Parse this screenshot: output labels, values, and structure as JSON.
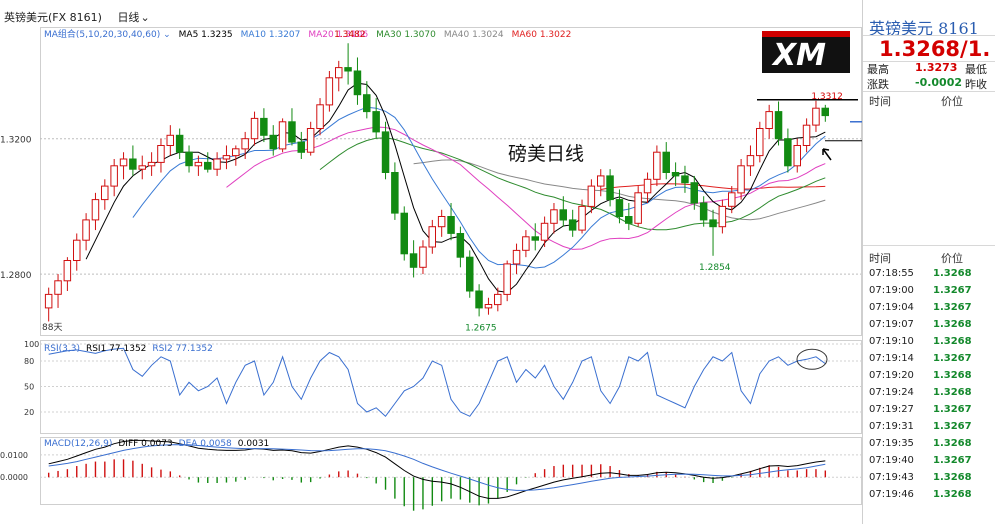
{
  "header": {
    "symbol": "英镑美元(FX 8161)",
    "period": "日线",
    "period_arrow": "⌄"
  },
  "main_panel": {
    "ma_group": "MA组合(5,10,20,30,40,60)",
    "ma_labels": [
      {
        "text": "MA5 1.3235",
        "color": "#000000"
      },
      {
        "text": "MA10 1.3207",
        "color": "#3a7bd5"
      },
      {
        "text": "MA20 1.3106",
        "color": "#e040c0"
      },
      {
        "text": "MA30 1.3070",
        "color": "#2e8b2e"
      },
      {
        "text": "MA40 1.3024",
        "color": "#888888"
      },
      {
        "text": "MA60 1.3022",
        "color": "#e02020"
      }
    ],
    "watermark_title": "磅美日线",
    "logo_text": "XM",
    "annotations": [
      "1.3482",
      "1.2675",
      "1.2854",
      "1.3312"
    ],
    "y_tick_labels": [
      "1.3200",
      "1.2800"
    ],
    "bottom_label": "88天"
  },
  "rsi_panel": {
    "title": "RSI(3,3)",
    "rsi1": "RSI1 77.1352",
    "rsi2": "RSI2 77.1352",
    "y_ticks": [
      "100",
      "80",
      "50",
      "20"
    ]
  },
  "macd_panel": {
    "title": "MACD(12,26,9)",
    "diff": "DIFF 0.0073",
    "dea": "DEA 0.0058",
    "macd": "0.0031",
    "y_ticks": [
      "0.0100",
      "0.0000"
    ]
  },
  "quote_panel": {
    "title": "英镑美元  8161",
    "price": "1.3268/1.",
    "high_label": "最高",
    "high_value": "1.3273",
    "low_label": "最低",
    "change_label": "涨跌",
    "change_value": "-0.0002",
    "prev_label": "昨收",
    "col_time": "时间",
    "col_price": "价位",
    "ticks": [
      {
        "time": "07:18:55",
        "price": "1.3268"
      },
      {
        "time": "07:19:00",
        "price": "1.3267"
      },
      {
        "time": "07:19:04",
        "price": "1.3267"
      },
      {
        "time": "07:19:07",
        "price": "1.3268"
      },
      {
        "time": "07:19:10",
        "price": "1.3268"
      },
      {
        "time": "07:19:14",
        "price": "1.3267"
      },
      {
        "time": "07:19:20",
        "price": "1.3268"
      },
      {
        "time": "07:19:24",
        "price": "1.3268"
      },
      {
        "time": "07:19:27",
        "price": "1.3267"
      },
      {
        "time": "07:19:31",
        "price": "1.3267"
      },
      {
        "time": "07:19:35",
        "price": "1.3268"
      },
      {
        "time": "07:19:40",
        "price": "1.3267"
      },
      {
        "time": "07:19:43",
        "price": "1.3268"
      },
      {
        "time": "07:19:46",
        "price": "1.3268"
      }
    ]
  },
  "colors": {
    "up": "#d01010",
    "down": "#128a12",
    "ma5": "#000000",
    "ma10": "#3a7bd5",
    "ma20": "#e040c0",
    "ma30": "#2e8b2e",
    "ma40": "#888888",
    "ma60": "#e02020",
    "rsi": "#3a6fd0",
    "dea": "#3a6fd0",
    "diff": "#000000"
  },
  "chart_data": {
    "type": "candlestick",
    "title": "磅美日线",
    "period": "daily",
    "ylim": [
      1.262,
      1.353
    ],
    "annotated_high": 1.3482,
    "annotated_lows": [
      1.2675,
      1.2854
    ],
    "annotated_recent_high": 1.3312,
    "ohlc": [
      [
        1.27,
        1.276,
        1.266,
        1.274
      ],
      [
        1.274,
        1.28,
        1.27,
        1.278
      ],
      [
        1.278,
        1.285,
        1.275,
        1.284
      ],
      [
        1.284,
        1.292,
        1.281,
        1.29
      ],
      [
        1.29,
        1.298,
        1.287,
        1.296
      ],
      [
        1.296,
        1.304,
        1.293,
        1.302
      ],
      [
        1.302,
        1.308,
        1.299,
        1.306
      ],
      [
        1.306,
        1.314,
        1.303,
        1.312
      ],
      [
        1.312,
        1.316,
        1.308,
        1.314
      ],
      [
        1.314,
        1.318,
        1.309,
        1.311
      ],
      [
        1.311,
        1.315,
        1.308,
        1.312
      ],
      [
        1.312,
        1.316,
        1.309,
        1.313
      ],
      [
        1.313,
        1.32,
        1.31,
        1.318
      ],
      [
        1.318,
        1.324,
        1.315,
        1.321
      ],
      [
        1.321,
        1.323,
        1.314,
        1.316
      ],
      [
        1.316,
        1.318,
        1.31,
        1.312
      ],
      [
        1.312,
        1.315,
        1.309,
        1.313
      ],
      [
        1.313,
        1.316,
        1.31,
        1.311
      ],
      [
        1.311,
        1.316,
        1.309,
        1.314
      ],
      [
        1.314,
        1.318,
        1.311,
        1.315
      ],
      [
        1.315,
        1.318,
        1.312,
        1.317
      ],
      [
        1.317,
        1.322,
        1.314,
        1.32
      ],
      [
        1.32,
        1.328,
        1.318,
        1.326
      ],
      [
        1.326,
        1.329,
        1.319,
        1.321
      ],
      [
        1.321,
        1.324,
        1.315,
        1.317
      ],
      [
        1.317,
        1.326,
        1.316,
        1.325
      ],
      [
        1.325,
        1.329,
        1.318,
        1.319
      ],
      [
        1.319,
        1.322,
        1.314,
        1.316
      ],
      [
        1.316,
        1.325,
        1.315,
        1.323
      ],
      [
        1.323,
        1.332,
        1.321,
        1.33
      ],
      [
        1.33,
        1.34,
        1.328,
        1.338
      ],
      [
        1.338,
        1.343,
        1.334,
        1.341
      ],
      [
        1.341,
        1.3482,
        1.336,
        1.34
      ],
      [
        1.34,
        1.344,
        1.33,
        1.333
      ],
      [
        1.333,
        1.337,
        1.326,
        1.328
      ],
      [
        1.328,
        1.332,
        1.32,
        1.322
      ],
      [
        1.322,
        1.325,
        1.308,
        1.31
      ],
      [
        1.31,
        1.313,
        1.296,
        1.298
      ],
      [
        1.298,
        1.3,
        1.284,
        1.286
      ],
      [
        1.286,
        1.29,
        1.279,
        1.282
      ],
      [
        1.282,
        1.29,
        1.28,
        1.288
      ],
      [
        1.288,
        1.296,
        1.286,
        1.294
      ],
      [
        1.294,
        1.299,
        1.291,
        1.297
      ],
      [
        1.297,
        1.301,
        1.29,
        1.292
      ],
      [
        1.292,
        1.294,
        1.282,
        1.285
      ],
      [
        1.285,
        1.287,
        1.273,
        1.275
      ],
      [
        1.275,
        1.277,
        1.2675,
        1.27
      ],
      [
        1.27,
        1.273,
        1.268,
        1.271
      ],
      [
        1.271,
        1.276,
        1.269,
        1.274
      ],
      [
        1.274,
        1.284,
        1.272,
        1.283
      ],
      [
        1.283,
        1.289,
        1.28,
        1.287
      ],
      [
        1.287,
        1.293,
        1.285,
        1.291
      ],
      [
        1.291,
        1.295,
        1.287,
        1.29
      ],
      [
        1.29,
        1.297,
        1.288,
        1.295
      ],
      [
        1.295,
        1.301,
        1.292,
        1.299
      ],
      [
        1.299,
        1.303,
        1.294,
        1.296
      ],
      [
        1.296,
        1.299,
        1.291,
        1.293
      ],
      [
        1.293,
        1.302,
        1.292,
        1.3
      ],
      [
        1.3,
        1.308,
        1.298,
        1.306
      ],
      [
        1.306,
        1.311,
        1.303,
        1.309
      ],
      [
        1.309,
        1.311,
        1.3,
        1.302
      ],
      [
        1.302,
        1.305,
        1.295,
        1.297
      ],
      [
        1.297,
        1.301,
        1.293,
        1.295
      ],
      [
        1.295,
        1.306,
        1.294,
        1.304
      ],
      [
        1.304,
        1.31,
        1.301,
        1.308
      ],
      [
        1.308,
        1.318,
        1.306,
        1.316
      ],
      [
        1.316,
        1.319,
        1.308,
        1.31
      ],
      [
        1.31,
        1.313,
        1.306,
        1.309
      ],
      [
        1.309,
        1.312,
        1.304,
        1.307
      ],
      [
        1.307,
        1.309,
        1.299,
        1.301
      ],
      [
        1.301,
        1.303,
        1.294,
        1.296
      ],
      [
        1.296,
        1.299,
        1.2854,
        1.294
      ],
      [
        1.294,
        1.302,
        1.292,
        1.3
      ],
      [
        1.3,
        1.306,
        1.298,
        1.304
      ],
      [
        1.304,
        1.314,
        1.302,
        1.312
      ],
      [
        1.312,
        1.318,
        1.309,
        1.315
      ],
      [
        1.315,
        1.325,
        1.313,
        1.323
      ],
      [
        1.323,
        1.33,
        1.32,
        1.328
      ],
      [
        1.328,
        1.331,
        1.318,
        1.32
      ],
      [
        1.32,
        1.323,
        1.31,
        1.312
      ],
      [
        1.312,
        1.32,
        1.31,
        1.318
      ],
      [
        1.318,
        1.326,
        1.316,
        1.324
      ],
      [
        1.324,
        1.3312,
        1.322,
        1.329
      ],
      [
        1.329,
        1.33,
        1.325,
        1.3268
      ]
    ],
    "rsi": [
      88,
      90,
      92,
      93,
      91,
      89,
      92,
      94,
      95,
      70,
      62,
      75,
      85,
      80,
      40,
      55,
      45,
      50,
      60,
      30,
      55,
      75,
      80,
      40,
      55,
      85,
      50,
      35,
      60,
      80,
      90,
      85,
      70,
      30,
      20,
      25,
      15,
      30,
      45,
      50,
      60,
      80,
      75,
      35,
      20,
      15,
      30,
      55,
      80,
      85,
      55,
      70,
      60,
      75,
      50,
      35,
      55,
      80,
      85,
      45,
      30,
      50,
      85,
      80,
      90,
      40,
      35,
      30,
      25,
      50,
      70,
      85,
      80,
      90,
      45,
      30,
      65,
      80,
      85,
      75,
      80,
      82,
      85,
      77
    ],
    "macd": {
      "diff": [
        0.006,
        0.007,
        0.008,
        0.0095,
        0.011,
        0.0125,
        0.0135,
        0.015,
        0.016,
        0.0165,
        0.0165,
        0.0162,
        0.016,
        0.0158,
        0.015,
        0.014,
        0.013,
        0.0125,
        0.0122,
        0.012,
        0.012,
        0.0122,
        0.0128,
        0.0126,
        0.012,
        0.0122,
        0.0118,
        0.011,
        0.0108,
        0.0115,
        0.0125,
        0.0135,
        0.014,
        0.0135,
        0.0125,
        0.011,
        0.009,
        0.006,
        0.003,
        0.0005,
        -0.001,
        -0.0018,
        -0.0022,
        -0.003,
        -0.0045,
        -0.0065,
        -0.0085,
        -0.0095,
        -0.0095,
        -0.0088,
        -0.0075,
        -0.006,
        -0.0048,
        -0.0035,
        -0.0022,
        -0.0012,
        -0.0005,
        0.0002,
        0.001,
        0.0018,
        0.002,
        0.0015,
        0.0008,
        0.0008,
        0.0012,
        0.002,
        0.0022,
        0.002,
        0.0015,
        0.0008,
        0.0,
        -0.0005,
        -0.0002,
        0.0005,
        0.0015,
        0.0025,
        0.0038,
        0.005,
        0.0052,
        0.0048,
        0.0052,
        0.006,
        0.0068,
        0.0073
      ],
      "dea": [
        0.005,
        0.0056,
        0.0062,
        0.007,
        0.008,
        0.009,
        0.01,
        0.011,
        0.012,
        0.0128,
        0.0135,
        0.014,
        0.0143,
        0.0145,
        0.0146,
        0.0145,
        0.0142,
        0.0138,
        0.0135,
        0.0132,
        0.013,
        0.0128,
        0.0128,
        0.0128,
        0.0127,
        0.0126,
        0.0124,
        0.0122,
        0.0119,
        0.0118,
        0.0119,
        0.0122,
        0.0125,
        0.0127,
        0.0127,
        0.0124,
        0.0118,
        0.0108,
        0.0095,
        0.008,
        0.0062,
        0.0046,
        0.0032,
        0.0018,
        0.0005,
        -0.0008,
        -0.0022,
        -0.0036,
        -0.0047,
        -0.0055,
        -0.0059,
        -0.0059,
        -0.0057,
        -0.0053,
        -0.0047,
        -0.004,
        -0.0033,
        -0.0026,
        -0.0018,
        -0.0011,
        -0.0005,
        -0.0001,
        0.0001,
        0.0003,
        0.0005,
        0.0008,
        0.0011,
        0.0013,
        0.0014,
        0.0013,
        0.0011,
        0.0008,
        0.0006,
        0.0006,
        0.0008,
        0.0011,
        0.0017,
        0.0023,
        0.0029,
        0.0033,
        0.0037,
        0.0042,
        0.005,
        0.0058
      ]
    }
  }
}
